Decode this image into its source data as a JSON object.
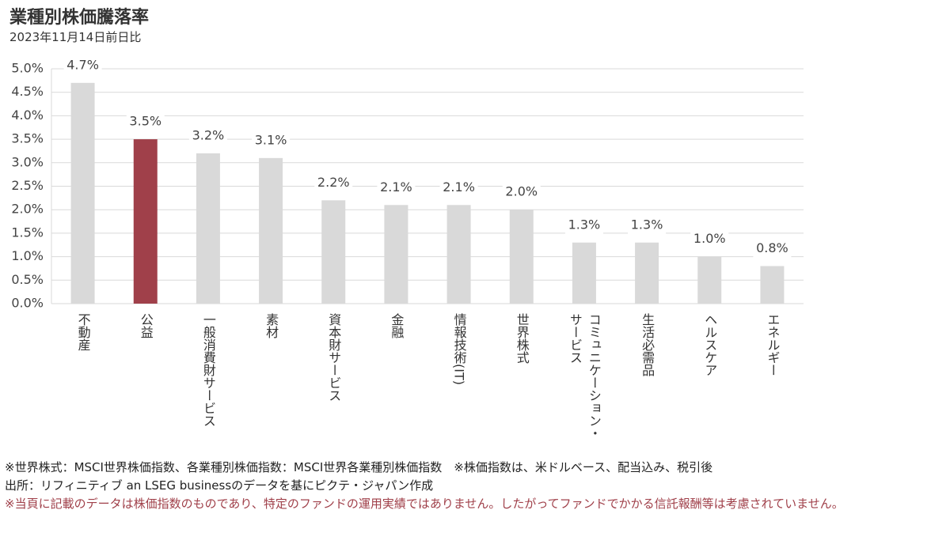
{
  "chart_data": {
    "type": "bar",
    "title": "業種別株価騰落率",
    "subtitle": "2023年11月14日前日比",
    "categories": [
      "不動産",
      "公益",
      "一般消費財サービス",
      "素材",
      "資本財サービス",
      "金融",
      "情報技術(IT)",
      "世界株式",
      "コミュニケーション・サービス",
      "生活必需品",
      "ヘルスケア",
      "エネルギー"
    ],
    "values": [
      4.7,
      3.5,
      3.2,
      3.1,
      2.2,
      2.1,
      2.1,
      2.0,
      1.3,
      1.3,
      1.0,
      0.8
    ],
    "value_labels": [
      "4.7%",
      "3.5%",
      "3.2%",
      "3.1%",
      "2.2%",
      "2.1%",
      "2.1%",
      "2.0%",
      "1.3%",
      "1.3%",
      "1.0%",
      "0.8%"
    ],
    "colors": [
      "#d9d9d9",
      "#a0404a",
      "#d9d9d9",
      "#d9d9d9",
      "#d9d9d9",
      "#d9d9d9",
      "#d9d9d9",
      "#d9d9d9",
      "#d9d9d9",
      "#d9d9d9",
      "#d9d9d9",
      "#d9d9d9"
    ],
    "ylim": [
      0,
      5
    ],
    "yticks": [
      {
        "value": 0,
        "label": "0.0%"
      },
      {
        "value": 0.5,
        "label": "0.5%"
      },
      {
        "value": 1,
        "label": "1.0%"
      },
      {
        "value": 1.5,
        "label": "1.5%"
      },
      {
        "value": 2,
        "label": "2.0%"
      },
      {
        "value": 2.5,
        "label": "2.5%"
      },
      {
        "value": 3,
        "label": "3.0%"
      },
      {
        "value": 3.5,
        "label": "3.5%"
      },
      {
        "value": 4,
        "label": "4.0%"
      },
      {
        "value": 4.5,
        "label": "4.5%"
      },
      {
        "value": 5,
        "label": "5.0%"
      }
    ],
    "grid": true,
    "notes": [
      "※世界株式：MSCI世界株価指数、各業種別株価指数：MSCI世界各業種別株価指数　※株価指数は、米ドルベース、配当込み、税引後",
      "出所：リフィニティブ an LSEG businessのデータを基にピクテ・ジャパン作成"
    ],
    "disclaimer": "※当頁に記載のデータは株価指数のものであり、特定のファンドの運用実績ではありません。したがってファンドでかかる信託報酬等は考慮されていません。"
  }
}
